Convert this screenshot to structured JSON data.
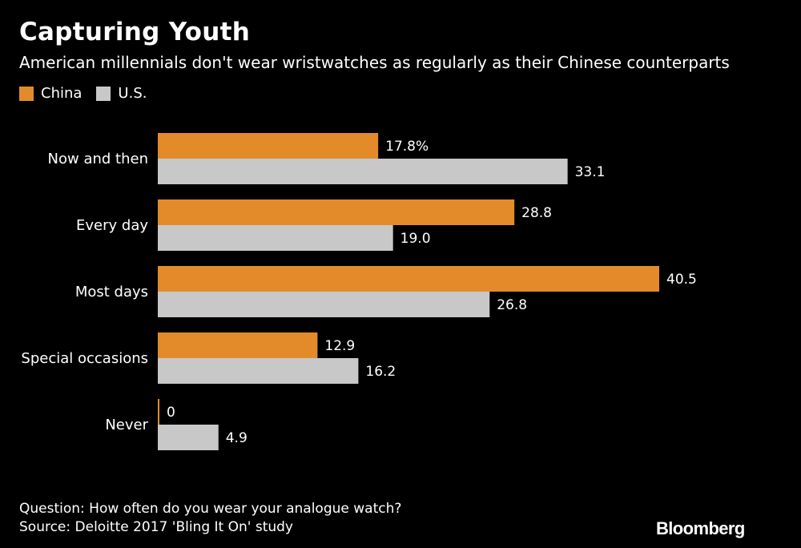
{
  "header": {
    "title": "Capturing Youth",
    "subtitle": "American millennials don't wear wristwatches as regularly as their Chinese counterparts"
  },
  "footer": {
    "question": "Question: How often do you wear your analogue watch?",
    "source": "Source: Deloitte 2017 'Bling It On' study"
  },
  "brand": {
    "logo_text": "Bloomberg"
  },
  "colors": {
    "china": "#e38b2a",
    "us": "#c8c8c8",
    "background": "#000000",
    "text": "#ffffff"
  },
  "chart_data": {
    "type": "bar",
    "orientation": "horizontal",
    "categories": [
      "Now and then",
      "Every day",
      "Most days",
      "Special occasions",
      "Never"
    ],
    "series": [
      {
        "name": "China",
        "values": [
          17.8,
          28.8,
          40.5,
          12.9,
          0
        ],
        "labels": [
          "17.8%",
          "28.8",
          "40.5",
          "12.9",
          "0"
        ]
      },
      {
        "name": "U.S.",
        "values": [
          33.1,
          19.0,
          26.8,
          16.2,
          4.9
        ],
        "labels": [
          "33.1",
          "19.0",
          "26.8",
          "16.2",
          "4.9"
        ]
      }
    ],
    "xlim": [
      0,
      40.5
    ],
    "grid": false,
    "legend": "top-left"
  }
}
